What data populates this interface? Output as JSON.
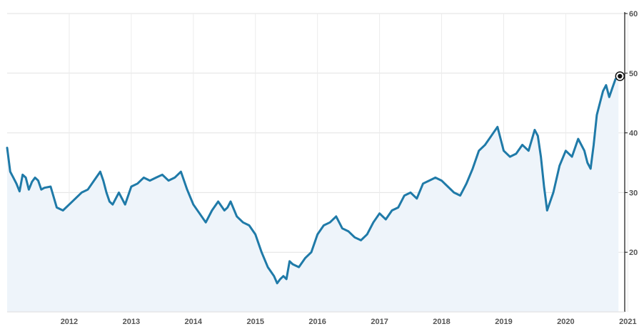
{
  "chart_data": {
    "type": "area",
    "title": "",
    "xlabel": "",
    "ylabel": "",
    "ylim": [
      10,
      60
    ],
    "y_axis_position": "right",
    "y_ticks": [
      "20",
      "30",
      "40",
      "50",
      "60"
    ],
    "x_ticks": [
      "2012",
      "2013",
      "2014",
      "2015",
      "2016",
      "2017",
      "2018",
      "2019",
      "2020",
      "2021"
    ],
    "grid": true,
    "colors": {
      "line": "#1f7aa8",
      "fill": "#eef4fa",
      "grid": "#e2e2e2",
      "axis": "#111111",
      "end_marker": "#111111"
    },
    "series": [
      {
        "x": [
          2011.5,
          2011.55,
          2011.6,
          2011.65,
          2011.7,
          2011.75,
          2011.8,
          2011.85,
          2011.9,
          2011.95,
          2012.0,
          2012.05,
          2012.1,
          2012.2,
          2012.3,
          2012.4,
          2012.5,
          2012.6,
          2012.7,
          2012.8,
          2012.9,
          2013.0,
          2013.05,
          2013.1,
          2013.15,
          2013.2,
          2013.3,
          2013.4,
          2013.5,
          2013.6,
          2013.7,
          2013.8,
          2013.9,
          2014.0,
          2014.1,
          2014.2,
          2014.3,
          2014.4,
          2014.5,
          2014.6,
          2014.7,
          2014.8,
          2014.9,
          2015.0,
          2015.05,
          2015.1,
          2015.2,
          2015.3,
          2015.4,
          2015.5,
          2015.6,
          2015.7,
          2015.8,
          2015.85,
          2015.9,
          2015.95,
          2016.0,
          2016.05,
          2016.1,
          2016.2,
          2016.3,
          2016.4,
          2016.5,
          2016.6,
          2016.7,
          2016.8,
          2016.9,
          2017.0,
          2017.1,
          2017.2,
          2017.3,
          2017.4,
          2017.5,
          2017.6,
          2017.7,
          2017.8,
          2017.9,
          2018.0,
          2018.1,
          2018.2,
          2018.3,
          2018.4,
          2018.5,
          2018.6,
          2018.7,
          2018.8,
          2018.9,
          2019.0,
          2019.1,
          2019.2,
          2019.3,
          2019.4,
          2019.5,
          2019.6,
          2019.7,
          2019.8,
          2019.9,
          2020.0,
          2020.05,
          2020.1,
          2020.15,
          2020.2,
          2020.3,
          2020.4,
          2020.5,
          2020.6,
          2020.7,
          2020.8,
          2020.85,
          2020.9,
          2020.95,
          2021.0,
          2021.05,
          2021.1,
          2021.15,
          2021.2,
          2021.25,
          2021.3,
          2021.35
        ],
        "values": [
          37.5,
          33.5,
          32.5,
          31.5,
          30.2,
          33.0,
          32.5,
          30.5,
          31.8,
          32.5,
          32.0,
          30.5,
          30.8,
          31.0,
          27.5,
          27.0,
          28.0,
          29.0,
          30.0,
          30.5,
          32.0,
          33.5,
          32.0,
          30.0,
          28.5,
          28.0,
          30.0,
          28.0,
          31.0,
          31.5,
          32.5,
          32.0,
          32.5,
          33.0,
          32.0,
          32.5,
          33.5,
          30.5,
          28.0,
          26.5,
          25.0,
          27.0,
          28.5,
          27.0,
          27.5,
          28.5,
          26.0,
          25.0,
          24.5,
          23.0,
          20.0,
          17.5,
          16.0,
          14.8,
          15.5,
          16.0,
          15.5,
          18.5,
          18.0,
          17.5,
          19.0,
          20.0,
          23.0,
          24.5,
          25.0,
          26.0,
          24.0,
          23.5,
          22.5,
          22.0,
          23.0,
          25.0,
          26.5,
          25.5,
          27.0,
          27.5,
          29.5,
          30.0,
          29.0,
          31.5,
          32.0,
          32.5,
          32.0,
          31.0,
          30.0,
          29.5,
          31.5,
          34.0,
          37.0,
          38.0,
          39.5,
          41.0,
          37.0,
          36.0,
          36.5,
          38.0,
          37.0,
          40.5,
          39.5,
          36.0,
          31.0,
          27.0,
          30.0,
          34.5,
          37.0,
          36.0,
          39.0,
          37.0,
          35.0,
          34.0,
          38.0,
          43.0,
          45.0,
          47.0,
          48.0,
          46.0,
          47.5,
          49.0,
          49.5
        ]
      }
    ]
  }
}
